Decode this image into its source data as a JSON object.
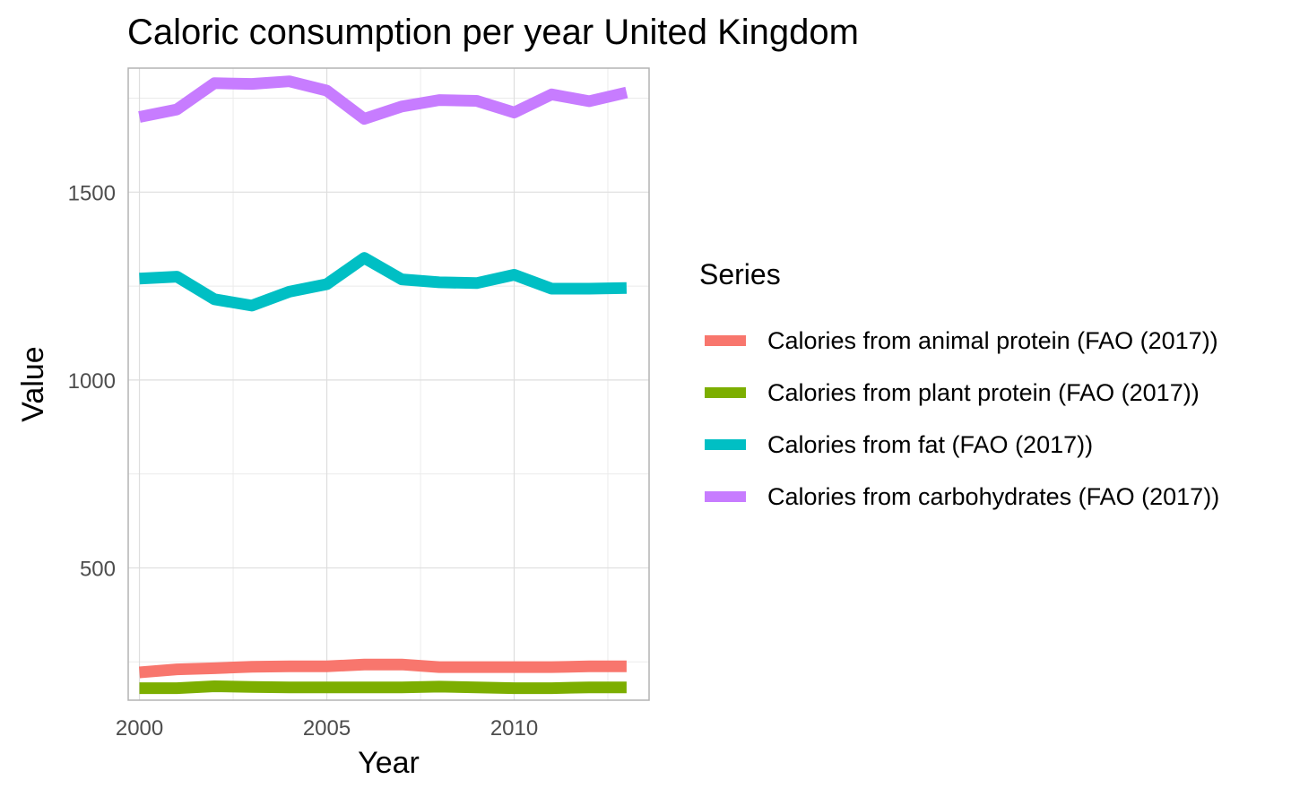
{
  "chart_data": {
    "type": "line",
    "title": "Caloric consumption per year United Kingdom",
    "xlabel": "Year",
    "ylabel": "Value",
    "legend_title": "Series",
    "legend_position": "right",
    "grid": true,
    "xlim": [
      1999.7,
      2013.6
    ],
    "ylim": [
      148,
      1830
    ],
    "x_ticks": [
      2000,
      2005,
      2010
    ],
    "y_ticks": [
      500,
      1000,
      1500
    ],
    "x": [
      2000,
      2001,
      2002,
      2003,
      2004,
      2005,
      2006,
      2007,
      2008,
      2009,
      2010,
      2011,
      2012,
      2013
    ],
    "series": [
      {
        "name": "Calories from animal protein (FAO (2017))",
        "color": "#F8766D",
        "values": [
          222,
          230,
          233,
          237,
          238,
          238,
          243,
          243,
          236,
          236,
          236,
          236,
          238,
          238
        ]
      },
      {
        "name": "Calories from plant protein (FAO (2017))",
        "color": "#7CAE00",
        "values": [
          180,
          180,
          185,
          183,
          182,
          182,
          182,
          182,
          184,
          182,
          180,
          180,
          182,
          182
        ]
      },
      {
        "name": "Calories from fat (FAO (2017))",
        "color": "#00BFC4",
        "values": [
          1270,
          1275,
          1215,
          1198,
          1235,
          1255,
          1325,
          1268,
          1260,
          1258,
          1280,
          1243,
          1243,
          1245
        ]
      },
      {
        "name": "Calories from carbohydrates (FAO (2017))",
        "color": "#C77CFF",
        "values": [
          1700,
          1720,
          1790,
          1788,
          1795,
          1770,
          1695,
          1728,
          1745,
          1743,
          1712,
          1760,
          1742,
          1765
        ]
      }
    ]
  }
}
